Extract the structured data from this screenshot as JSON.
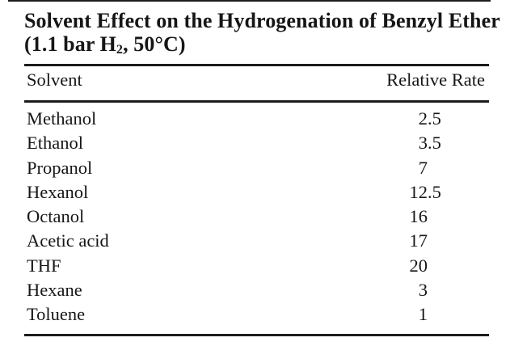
{
  "table": {
    "title_line1": "Solvent Effect on the Hydrogenation of Benzyl Ether",
    "title_line2_prefix": "(1.1 bar H",
    "title_line2_sub": "2",
    "title_line2_suffix": ", 50°C)",
    "columns": {
      "solvent": "Solvent",
      "rate": "Relative Rate"
    },
    "rows": [
      {
        "solvent": "Methanol",
        "rate": "2.5",
        "rate_int": "2",
        "rate_dec": ".5"
      },
      {
        "solvent": "Ethanol",
        "rate": "3.5",
        "rate_int": "3",
        "rate_dec": ".5"
      },
      {
        "solvent": "Propanol",
        "rate": "7",
        "rate_int": "7",
        "rate_dec": ""
      },
      {
        "solvent": "Hexanol",
        "rate": "12.5",
        "rate_int": "12",
        "rate_dec": ".5"
      },
      {
        "solvent": "Octanol",
        "rate": "16",
        "rate_int": "16",
        "rate_dec": ""
      },
      {
        "solvent": "Acetic acid",
        "rate": "17",
        "rate_int": "17",
        "rate_dec": ""
      },
      {
        "solvent": "THF",
        "rate": "20",
        "rate_int": "20",
        "rate_dec": ""
      },
      {
        "solvent": "Hexane",
        "rate": "3",
        "rate_int": "3",
        "rate_dec": ""
      },
      {
        "solvent": "Toluene",
        "rate": "1",
        "rate_int": "1",
        "rate_dec": ""
      }
    ]
  },
  "chart_data": {
    "type": "table",
    "title": "Solvent Effect on the Hydrogenation of Benzyl Ether (1.1 bar H2, 50°C)",
    "columns": [
      "Solvent",
      "Relative Rate"
    ],
    "categories": [
      "Methanol",
      "Ethanol",
      "Propanol",
      "Hexanol",
      "Octanol",
      "Acetic acid",
      "THF",
      "Hexane",
      "Toluene"
    ],
    "values": [
      2.5,
      3.5,
      7,
      12.5,
      16,
      17,
      20,
      3,
      1
    ]
  },
  "colors": {
    "text": "#161616",
    "rule": "#1c1c1c",
    "background": "#ffffff"
  }
}
